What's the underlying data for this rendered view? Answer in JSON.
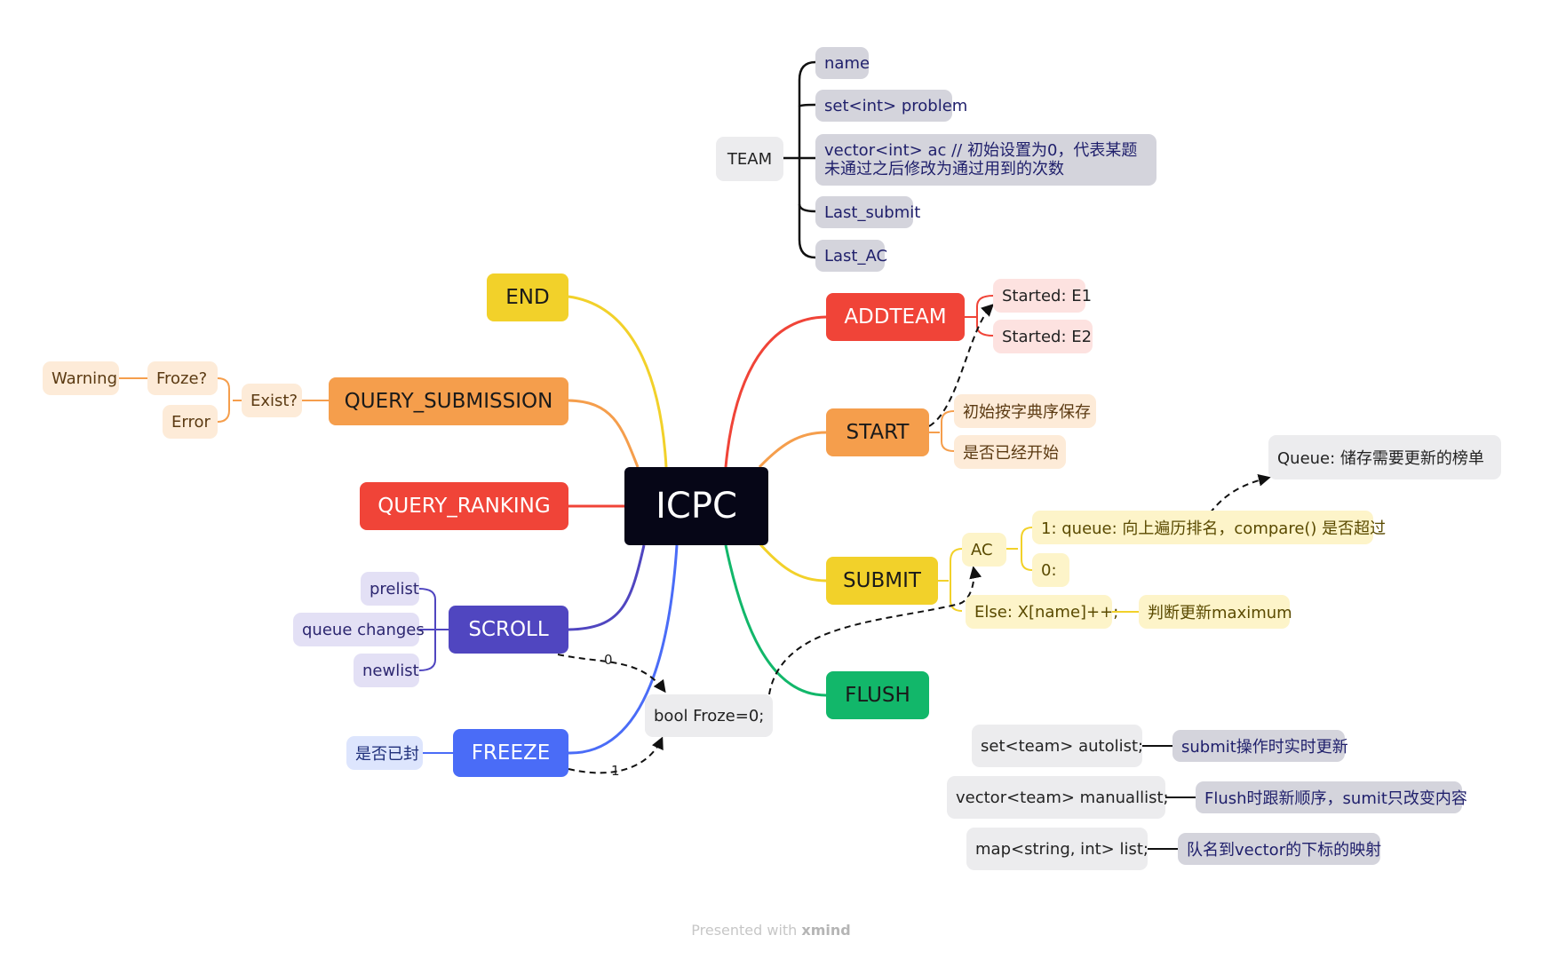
{
  "center": "ICPC",
  "main": {
    "end": "END",
    "query_submission": "QUERY_SUBMISSION",
    "query_ranking": "QUERY_RANKING",
    "scroll": "SCROLL",
    "freeze": "FREEZE",
    "addteam": "ADDTEAM",
    "start": "START",
    "submit": "SUBMIT",
    "flush": "FLUSH"
  },
  "team": {
    "label": "TEAM",
    "fields": [
      "name",
      "set<int> problem",
      "vector<int> ac // 初始设置为0，代表某题未通过之后修改为通过用到的次数",
      "Last_submit",
      "Last_AC"
    ]
  },
  "addteam_children": [
    "Started: E1",
    "Started: E2"
  ],
  "start_children": [
    "初始按字典序保存",
    "是否已经开始"
  ],
  "query_submission_children": {
    "exist": "Exist?",
    "froze": "Froze?",
    "warning": "Warning",
    "error": "Error"
  },
  "scroll_children": [
    "prelist",
    "queue changes",
    "newlist"
  ],
  "freeze_children": [
    "是否已封"
  ],
  "froze_var": "bool Froze=0;",
  "submit_children": {
    "ac": "AC",
    "ac_1": "1: queue: 向上遍历排名，compare() 是否超过",
    "ac_0": "0:",
    "else": "Else: X[name]++;",
    "else_child": "判断更新maximum"
  },
  "queue_note": "Queue: 储存需要更新的榜单",
  "floating": [
    {
      "label": "set<team> autolist;",
      "note": "submit操作时实时更新"
    },
    {
      "label": "vector<team> manuallist;",
      "note": "Flush时跟新顺序，sumit只改变内容"
    },
    {
      "label": "map<string, int> list;",
      "note": "队名到vector的下标的映射"
    }
  ],
  "relation_labels": {
    "scroll_froze": "0",
    "freeze_froze": "1"
  },
  "footer": {
    "prefix": "Presented with",
    "brand": "xmind"
  },
  "colors": {
    "center": "#060617",
    "red": "#f04438",
    "orange": "#f59e4c",
    "yellow": "#f2d12a",
    "green": "#12b76a",
    "purple": "#5046c0",
    "blue": "#4a6cf7",
    "team_gray": "#d4d4dc"
  }
}
